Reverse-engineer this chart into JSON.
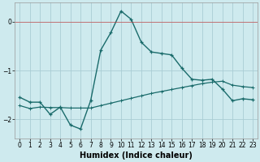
{
  "xlabel": "Humidex (Indice chaleur)",
  "background_color": "#ceeaee",
  "grid_color": "#aacdd4",
  "line_color": "#1a6b6b",
  "x_values": [
    0,
    1,
    2,
    3,
    4,
    5,
    6,
    7,
    8,
    9,
    10,
    11,
    12,
    13,
    14,
    15,
    16,
    17,
    18,
    19,
    20,
    21,
    22,
    23
  ],
  "line1_y": [
    -1.55,
    -1.65,
    -1.65,
    -1.9,
    -1.75,
    -2.12,
    -2.2,
    -1.62,
    -0.58,
    -0.22,
    0.22,
    0.05,
    -0.42,
    -0.62,
    -0.65,
    -0.68,
    -0.95,
    -1.18,
    -1.2,
    -1.18,
    -1.38,
    -1.62,
    -1.58,
    -1.6
  ],
  "line2_y": [
    -1.72,
    -1.78,
    -1.75,
    -1.76,
    -1.76,
    -1.77,
    -1.77,
    -1.77,
    -1.72,
    -1.67,
    -1.62,
    -1.57,
    -1.52,
    -1.47,
    -1.43,
    -1.39,
    -1.35,
    -1.31,
    -1.27,
    -1.24,
    -1.22,
    -1.3,
    -1.33,
    -1.35
  ],
  "ylim": [
    -2.4,
    0.4
  ],
  "xlim": [
    -0.5,
    23.5
  ],
  "yticks": [
    0,
    -1,
    -2
  ],
  "xticks": [
    0,
    1,
    2,
    3,
    4,
    5,
    6,
    7,
    8,
    9,
    10,
    11,
    12,
    13,
    14,
    15,
    16,
    17,
    18,
    19,
    20,
    21,
    22,
    23
  ],
  "xlabel_fontsize": 7,
  "tick_fontsize": 5.5
}
